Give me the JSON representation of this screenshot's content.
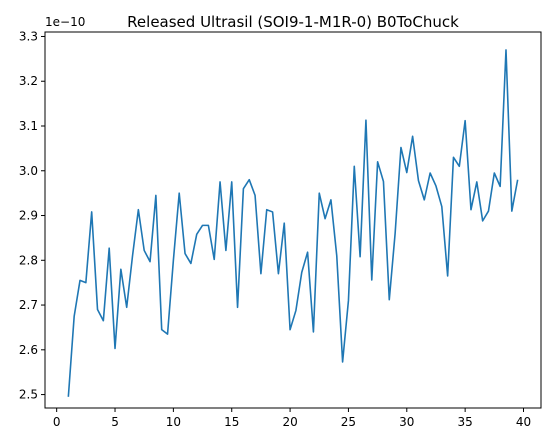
{
  "chart_data": {
    "type": "line",
    "title": "Released Ultrasil (SOI9-1-M1R-0) B0ToChuck",
    "xlabel": "",
    "ylabel": "",
    "y_offset_label": "1e−10",
    "xlim": [
      -1,
      41.5
    ],
    "ylim": [
      2.47,
      3.31
    ],
    "x_ticks": [
      0,
      5,
      10,
      15,
      20,
      25,
      30,
      35,
      40
    ],
    "x_tick_labels": [
      "0",
      "5",
      "10",
      "15",
      "20",
      "25",
      "30",
      "35",
      "40"
    ],
    "y_ticks": [
      2.5,
      2.6,
      2.7,
      2.8,
      2.9,
      3.0,
      3.1,
      3.2,
      3.3
    ],
    "y_tick_labels": [
      "2.5",
      "2.6",
      "2.7",
      "2.8",
      "2.9",
      "3.0",
      "3.1",
      "3.2",
      "3.3"
    ],
    "grid": false,
    "line_color": "#1f77b4",
    "series": [
      {
        "x": [
          1.0,
          1.5,
          2.0,
          2.5,
          3.0,
          3.5,
          4.0,
          4.5,
          5.0,
          5.5,
          6.0,
          6.5,
          7.0,
          7.5,
          8.0,
          8.5,
          9.0,
          9.5,
          10.0,
          10.5,
          11.0,
          11.5,
          12.0,
          12.5,
          13.0,
          13.5,
          14.0,
          14.5,
          15.0,
          15.5,
          16.0,
          16.5,
          17.0,
          17.5,
          18.0,
          18.5,
          19.0,
          19.5,
          20.0,
          20.5,
          21.0,
          21.5,
          22.0,
          22.5,
          23.0,
          23.5,
          24.0,
          24.5,
          25.0,
          25.5,
          26.0,
          26.5,
          27.0,
          27.5,
          28.0,
          28.5,
          29.0,
          29.5,
          30.0,
          30.5,
          31.0,
          31.5,
          32.0,
          32.5,
          33.0,
          33.5,
          34.0,
          34.5,
          35.0,
          35.5,
          36.0,
          36.5,
          37.0,
          37.5,
          38.0,
          38.5,
          39.0,
          39.5
        ],
        "y": [
          2.495,
          2.675,
          2.755,
          2.75,
          2.908,
          2.69,
          2.665,
          2.827,
          2.603,
          2.78,
          2.695,
          2.81,
          2.913,
          2.822,
          2.797,
          2.945,
          2.645,
          2.635,
          2.8,
          2.95,
          2.815,
          2.793,
          2.858,
          2.878,
          2.878,
          2.802,
          2.975,
          2.822,
          2.975,
          2.695,
          2.96,
          2.98,
          2.945,
          2.77,
          2.913,
          2.908,
          2.77,
          2.883,
          2.645,
          2.688,
          2.773,
          2.818,
          2.64,
          2.95,
          2.893,
          2.935,
          2.81,
          2.573,
          2.71,
          3.01,
          2.808,
          3.113,
          2.756,
          3.02,
          2.976,
          2.712,
          2.86,
          3.052,
          2.996,
          3.077,
          2.978,
          2.935,
          2.995,
          2.966,
          2.92,
          2.765,
          3.03,
          3.01,
          3.112,
          2.913,
          2.975,
          2.888,
          2.91,
          2.995,
          2.965,
          3.27,
          2.91,
          2.98
        ]
      }
    ]
  }
}
